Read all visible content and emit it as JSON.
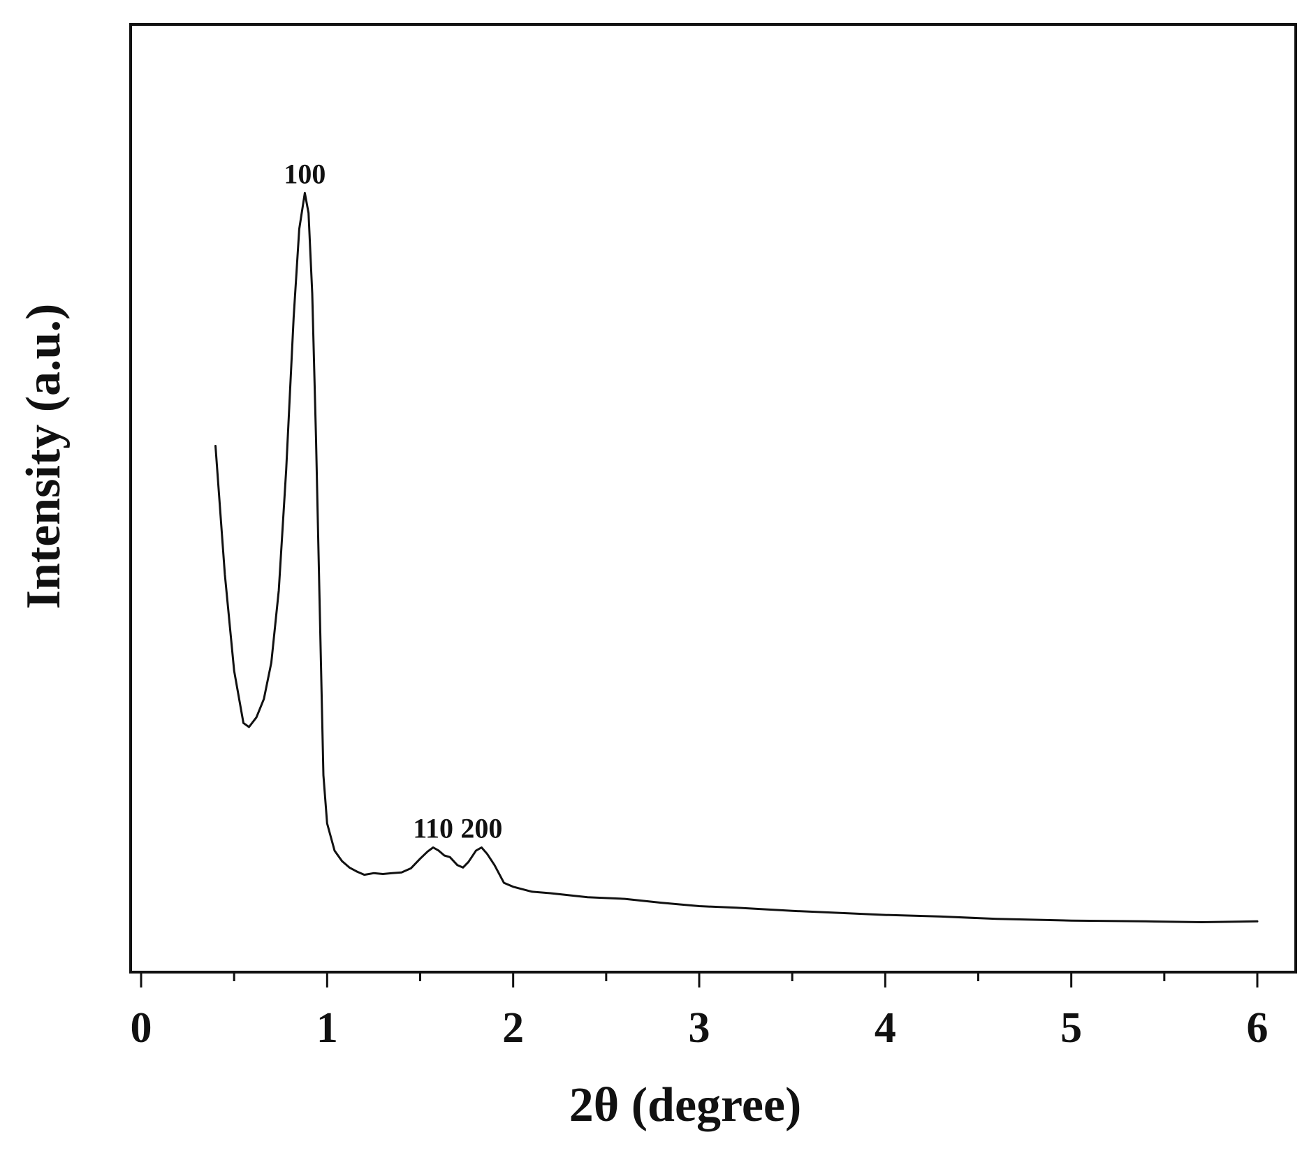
{
  "chart_data": {
    "type": "line",
    "xlabel": "2θ  (degree)",
    "ylabel": "Intensity (a.u.)",
    "xlim": [
      0,
      6
    ],
    "ylim": [
      0,
      100
    ],
    "x_ticks": [
      "0",
      "1",
      "2",
      "3",
      "4",
      "5",
      "6"
    ],
    "y_ticks": [],
    "grid": false,
    "legend": "none",
    "line_color": "#111111",
    "series": [
      {
        "points": [
          [
            0.4,
            61
          ],
          [
            0.45,
            45
          ],
          [
            0.5,
            33
          ],
          [
            0.55,
            26.5
          ],
          [
            0.58,
            26
          ],
          [
            0.62,
            27.2
          ],
          [
            0.66,
            29.5
          ],
          [
            0.7,
            34
          ],
          [
            0.74,
            43
          ],
          [
            0.78,
            58
          ],
          [
            0.82,
            77
          ],
          [
            0.85,
            88
          ],
          [
            0.88,
            92.5
          ],
          [
            0.9,
            90
          ],
          [
            0.92,
            80
          ],
          [
            0.94,
            62
          ],
          [
            0.96,
            41
          ],
          [
            0.98,
            20
          ],
          [
            1.0,
            14
          ],
          [
            1.04,
            10.6
          ],
          [
            1.08,
            9.3
          ],
          [
            1.12,
            8.5
          ],
          [
            1.16,
            8.0
          ],
          [
            1.2,
            7.6
          ],
          [
            1.25,
            7.8
          ],
          [
            1.3,
            7.7
          ],
          [
            1.35,
            7.8
          ],
          [
            1.4,
            7.9
          ],
          [
            1.45,
            8.4
          ],
          [
            1.5,
            9.6
          ],
          [
            1.54,
            10.5
          ],
          [
            1.57,
            11.0
          ],
          [
            1.6,
            10.6
          ],
          [
            1.63,
            10.0
          ],
          [
            1.66,
            9.8
          ],
          [
            1.7,
            8.8
          ],
          [
            1.73,
            8.5
          ],
          [
            1.76,
            9.2
          ],
          [
            1.8,
            10.6
          ],
          [
            1.83,
            11.0
          ],
          [
            1.86,
            10.2
          ],
          [
            1.9,
            8.8
          ],
          [
            1.95,
            6.6
          ],
          [
            2.0,
            6.1
          ],
          [
            2.1,
            5.5
          ],
          [
            2.2,
            5.3
          ],
          [
            2.4,
            4.8
          ],
          [
            2.6,
            4.6
          ],
          [
            2.8,
            4.1
          ],
          [
            3.0,
            3.7
          ],
          [
            3.2,
            3.5
          ],
          [
            3.5,
            3.1
          ],
          [
            3.8,
            2.8
          ],
          [
            4.0,
            2.6
          ],
          [
            4.3,
            2.4
          ],
          [
            4.6,
            2.1
          ],
          [
            5.0,
            1.9
          ],
          [
            5.4,
            1.8
          ],
          [
            5.7,
            1.7
          ],
          [
            6.0,
            1.8
          ]
        ]
      }
    ],
    "annotations": [
      {
        "text": "100",
        "x": 0.88,
        "y": 92.5
      },
      {
        "text": "110",
        "x": 1.57,
        "y": 11.0
      },
      {
        "text": "200",
        "x": 1.83,
        "y": 11.0
      }
    ]
  }
}
